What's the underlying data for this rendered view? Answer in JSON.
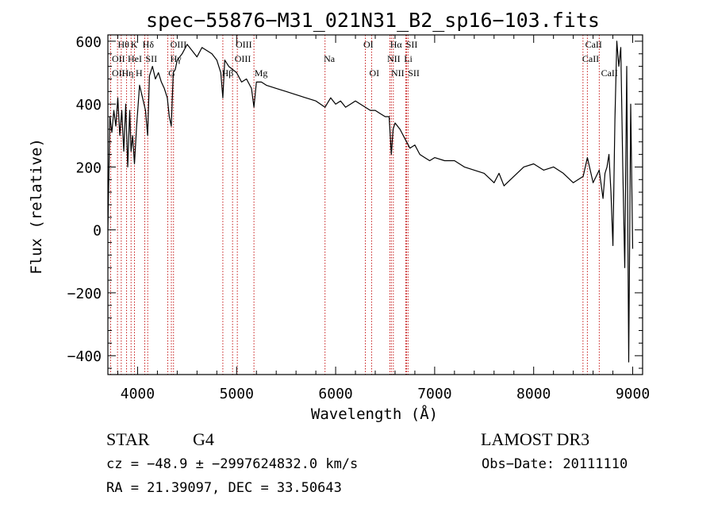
{
  "chart_data": {
    "type": "line",
    "title": "spec−55876−M31_021N31_B2_sp16−103.fits",
    "xlabel": "Wavelength (Å)",
    "ylabel": "Flux (relative)",
    "xlim": [
      3700,
      9100
    ],
    "ylim": [
      -460,
      620
    ],
    "xticks": [
      4000,
      5000,
      6000,
      7000,
      8000,
      9000
    ],
    "xtick_labels": [
      "4000",
      "5000",
      "6000",
      "7000",
      "8000",
      "9000"
    ],
    "yticks": [
      -400,
      -200,
      0,
      200,
      400,
      600
    ],
    "ytick_labels": [
      "−400",
      "−200",
      "0",
      "200",
      "400",
      "600"
    ],
    "grid": false,
    "series": [
      {
        "x": [
          3700,
          3720,
          3740,
          3760,
          3780,
          3800,
          3820,
          3840,
          3860,
          3880,
          3900,
          3920,
          3934,
          3950,
          3968,
          3990,
          4020,
          4050,
          4080,
          4101,
          4120,
          4150,
          4180,
          4210,
          4240,
          4270,
          4300,
          4320,
          4340,
          4360,
          4380,
          4400,
          4450,
          4500,
          4550,
          4600,
          4650,
          4700,
          4750,
          4800,
          4840,
          4861,
          4880,
          4920,
          4960,
          5000,
          5050,
          5100,
          5150,
          5175,
          5200,
          5250,
          5300,
          5400,
          5500,
          5600,
          5700,
          5800,
          5893,
          5950,
          6000,
          6050,
          6100,
          6150,
          6200,
          6250,
          6300,
          6350,
          6400,
          6450,
          6500,
          6540,
          6563,
          6580,
          6600,
          6650,
          6700,
          6750,
          6800,
          6850,
          6900,
          6950,
          7000,
          7100,
          7200,
          7300,
          7400,
          7500,
          7600,
          7650,
          7700,
          7800,
          7900,
          8000,
          8100,
          8200,
          8300,
          8400,
          8500,
          8542,
          8600,
          8662,
          8700,
          8720,
          8740,
          8760,
          8780,
          8800,
          8820,
          8840,
          8860,
          8880,
          8900,
          8920,
          8940,
          8960,
          8980,
          9000
        ],
        "y": [
          0,
          360,
          310,
          380,
          330,
          420,
          300,
          380,
          250,
          400,
          200,
          380,
          250,
          300,
          210,
          330,
          460,
          420,
          380,
          300,
          490,
          520,
          480,
          500,
          470,
          450,
          420,
          360,
          330,
          500,
          510,
          540,
          560,
          590,
          570,
          550,
          580,
          570,
          560,
          540,
          500,
          420,
          540,
          520,
          510,
          500,
          470,
          480,
          450,
          390,
          470,
          470,
          460,
          450,
          440,
          430,
          420,
          410,
          390,
          420,
          400,
          410,
          390,
          400,
          410,
          400,
          390,
          380,
          380,
          370,
          360,
          360,
          240,
          320,
          340,
          320,
          290,
          260,
          270,
          240,
          230,
          220,
          230,
          220,
          220,
          200,
          190,
          180,
          150,
          180,
          140,
          170,
          200,
          210,
          190,
          200,
          180,
          150,
          170,
          230,
          150,
          190,
          100,
          180,
          200,
          240,
          120,
          -50,
          350,
          600,
          520,
          580,
          200,
          -120,
          520,
          -420,
          400,
          -60
        ],
        "style": "solid black line"
      }
    ],
    "line_markers": [
      {
        "x": 3727,
        "labels": [
          "OII"
        ]
      },
      {
        "x": 3797,
        "labels": [
          "Hθ"
        ]
      },
      {
        "x": 3835,
        "labels": [
          "Hη"
        ]
      },
      {
        "x": 3889,
        "labels": [
          "HeI"
        ]
      },
      {
        "x": 3934,
        "labels": [
          "K"
        ]
      },
      {
        "x": 3968,
        "labels": [
          "H"
        ]
      },
      {
        "x": 4072,
        "labels": [
          "SII"
        ]
      },
      {
        "x": 4102,
        "labels": [
          "Hδ"
        ]
      },
      {
        "x": 4304,
        "labels": [
          "G"
        ]
      },
      {
        "x": 4341,
        "labels": [
          "Hγ"
        ]
      },
      {
        "x": 4363,
        "labels": [
          "OIII"
        ]
      },
      {
        "x": 4861,
        "labels": [
          "Hβ"
        ]
      },
      {
        "x": 4959,
        "labels": [
          "OIII"
        ]
      },
      {
        "x": 5007,
        "labels": [
          "OIII"
        ]
      },
      {
        "x": 5175,
        "labels": [
          "Mg"
        ]
      },
      {
        "x": 5893,
        "labels": [
          "Na"
        ]
      },
      {
        "x": 6300,
        "labels": [
          "OI"
        ]
      },
      {
        "x": 6363,
        "labels": [
          "OI"
        ]
      },
      {
        "x": 6548,
        "labels": [
          "NII"
        ]
      },
      {
        "x": 6563,
        "labels": [
          "Hα"
        ]
      },
      {
        "x": 6583,
        "labels": [
          "NII"
        ]
      },
      {
        "x": 6708,
        "labels": [
          "Li"
        ]
      },
      {
        "x": 6716,
        "labels": [
          "SII"
        ]
      },
      {
        "x": 6731,
        "labels": [
          "SII"
        ]
      },
      {
        "x": 8498,
        "labels": [
          "CaII"
        ]
      },
      {
        "x": 8542,
        "labels": [
          "CaII"
        ]
      },
      {
        "x": 8662,
        "labels": [
          "CaII"
        ]
      }
    ],
    "marker_label_rows": [
      {
        "x": 3800,
        "row": 0,
        "text": "Hθ"
      },
      {
        "x": 3930,
        "row": 0,
        "text": "K"
      },
      {
        "x": 4050,
        "row": 0,
        "text": "Hδ"
      },
      {
        "x": 4330,
        "row": 0,
        "text": "OIII"
      },
      {
        "x": 4990,
        "row": 0,
        "text": "OIII"
      },
      {
        "x": 6280,
        "row": 0,
        "text": "OI"
      },
      {
        "x": 6550,
        "row": 0,
        "text": "Hα"
      },
      {
        "x": 6710,
        "row": 0,
        "text": "SII"
      },
      {
        "x": 8520,
        "row": 0,
        "text": "CaII"
      },
      {
        "x": 3740,
        "row": 1,
        "text": "OII"
      },
      {
        "x": 3900,
        "row": 1,
        "text": "HeI"
      },
      {
        "x": 4080,
        "row": 1,
        "text": "SII"
      },
      {
        "x": 4330,
        "row": 1,
        "text": "Hγ"
      },
      {
        "x": 4980,
        "row": 1,
        "text": "OIII"
      },
      {
        "x": 5880,
        "row": 1,
        "text": "Na"
      },
      {
        "x": 6520,
        "row": 1,
        "text": "NII"
      },
      {
        "x": 6690,
        "row": 1,
        "text": "Li"
      },
      {
        "x": 8490,
        "row": 1,
        "text": "CaII"
      },
      {
        "x": 3740,
        "row": 2,
        "text": "OII"
      },
      {
        "x": 3840,
        "row": 2,
        "text": "Hη"
      },
      {
        "x": 3980,
        "row": 2,
        "text": "H"
      },
      {
        "x": 4310,
        "row": 2,
        "text": "G"
      },
      {
        "x": 4850,
        "row": 2,
        "text": "Hβ"
      },
      {
        "x": 5180,
        "row": 2,
        "text": "Mg"
      },
      {
        "x": 6340,
        "row": 2,
        "text": "OI"
      },
      {
        "x": 6560,
        "row": 2,
        "text": "NII"
      },
      {
        "x": 6730,
        "row": 2,
        "text": "SII"
      },
      {
        "x": 8680,
        "row": 2,
        "text": "CaII"
      }
    ]
  },
  "info": {
    "object_type": "STAR",
    "subclass": "G4",
    "survey": "LAMOST DR3",
    "redshift_line": "cz = −48.9 ± −2997624832.0 km/s",
    "obs_date": "Obs−Date: 20111110",
    "coords": "RA =  21.39097, DEC =  33.50643"
  },
  "colors": {
    "spectrum": "#000000",
    "marker_lines": "#c00000",
    "axes": "#000000",
    "background": "#ffffff"
  }
}
